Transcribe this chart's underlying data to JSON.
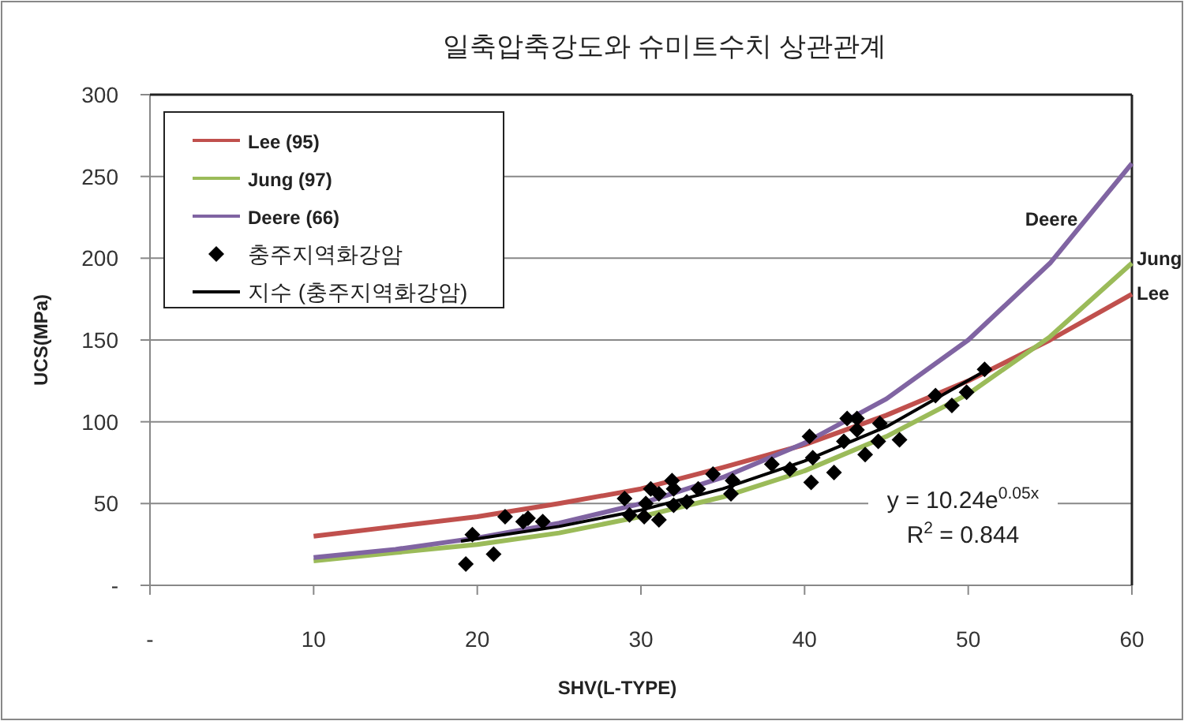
{
  "chart_data": {
    "type": "line",
    "title": "일축압축강도와 슈미트수치 상관관계",
    "xlabel": "SHV(L-TYPE)",
    "ylabel": "UCS(MPa)",
    "xlim": [
      0,
      60
    ],
    "ylim": [
      0,
      300
    ],
    "xticks": [
      {
        "value": 0,
        "label": "-"
      },
      10,
      20,
      30,
      40,
      50,
      60
    ],
    "yticks": [
      {
        "value": 0,
        "label": "-"
      },
      50,
      100,
      150,
      200,
      250,
      300
    ],
    "grid": "y",
    "legend": "top left",
    "series": [
      {
        "name": "Lee (95)",
        "color": "#c0504d",
        "marker": "none",
        "x": [
          10,
          15,
          20,
          25,
          30,
          35,
          40,
          45,
          50,
          55,
          60
        ],
        "values": [
          30,
          36,
          42,
          50,
          59,
          72,
          86,
          104,
          125,
          150,
          178
        ]
      },
      {
        "name": "Jung (97)",
        "color": "#9bbb59",
        "marker": "none",
        "x": [
          10,
          15,
          20,
          25,
          30,
          35,
          40,
          45,
          50,
          55,
          60
        ],
        "values": [
          15,
          20,
          25,
          32,
          42,
          54,
          70,
          91,
          117,
          152,
          197
        ]
      },
      {
        "name": "Deere (66)",
        "color": "#8064a2",
        "marker": "none",
        "x": [
          10,
          15,
          20,
          25,
          30,
          35,
          40,
          45,
          50,
          55,
          60
        ],
        "values": [
          17,
          22,
          29,
          38,
          50,
          66,
          87,
          114,
          150,
          197,
          258
        ]
      },
      {
        "name": "충주지역화강암",
        "color": "#000000",
        "type": "scatter",
        "marker": "diamond",
        "x": [
          19.3,
          19.7,
          21.0,
          21.7,
          22.8,
          23.1,
          24.0,
          29.0,
          29.3,
          30.2,
          30.3,
          30.6,
          31.1,
          31.1,
          31.9,
          32.0,
          32.0,
          32.8,
          33.5,
          34.4,
          35.5,
          35.6,
          38.0,
          39.1,
          40.4,
          40.5,
          40.3,
          41.8,
          42.4,
          42.6,
          43.2,
          43.2,
          43.7,
          44.5,
          44.6,
          45.8,
          48.0,
          49.0,
          49.9,
          51.0
        ],
        "values": [
          13,
          31,
          19,
          42,
          39,
          41,
          39,
          53,
          43,
          42,
          50,
          59,
          56,
          40,
          64,
          59,
          49,
          51,
          59,
          68,
          56,
          64,
          74,
          71,
          63,
          78,
          91,
          69,
          88,
          102,
          102,
          95,
          80,
          88,
          99,
          89,
          116,
          110,
          118,
          132
        ]
      },
      {
        "name": "지수 (충주지역화강암)",
        "color": "#000000",
        "marker": "none",
        "x": [
          19,
          25,
          30,
          35,
          40,
          45,
          51
        ],
        "values": [
          27,
          36,
          46,
          59,
          76,
          97,
          131
        ]
      }
    ],
    "annotations": [
      "y = 10.24e$^{0.05x}$",
      "R$^{2}$ = 0.844",
      "Deere",
      "Jung",
      "Lee"
    ]
  }
}
